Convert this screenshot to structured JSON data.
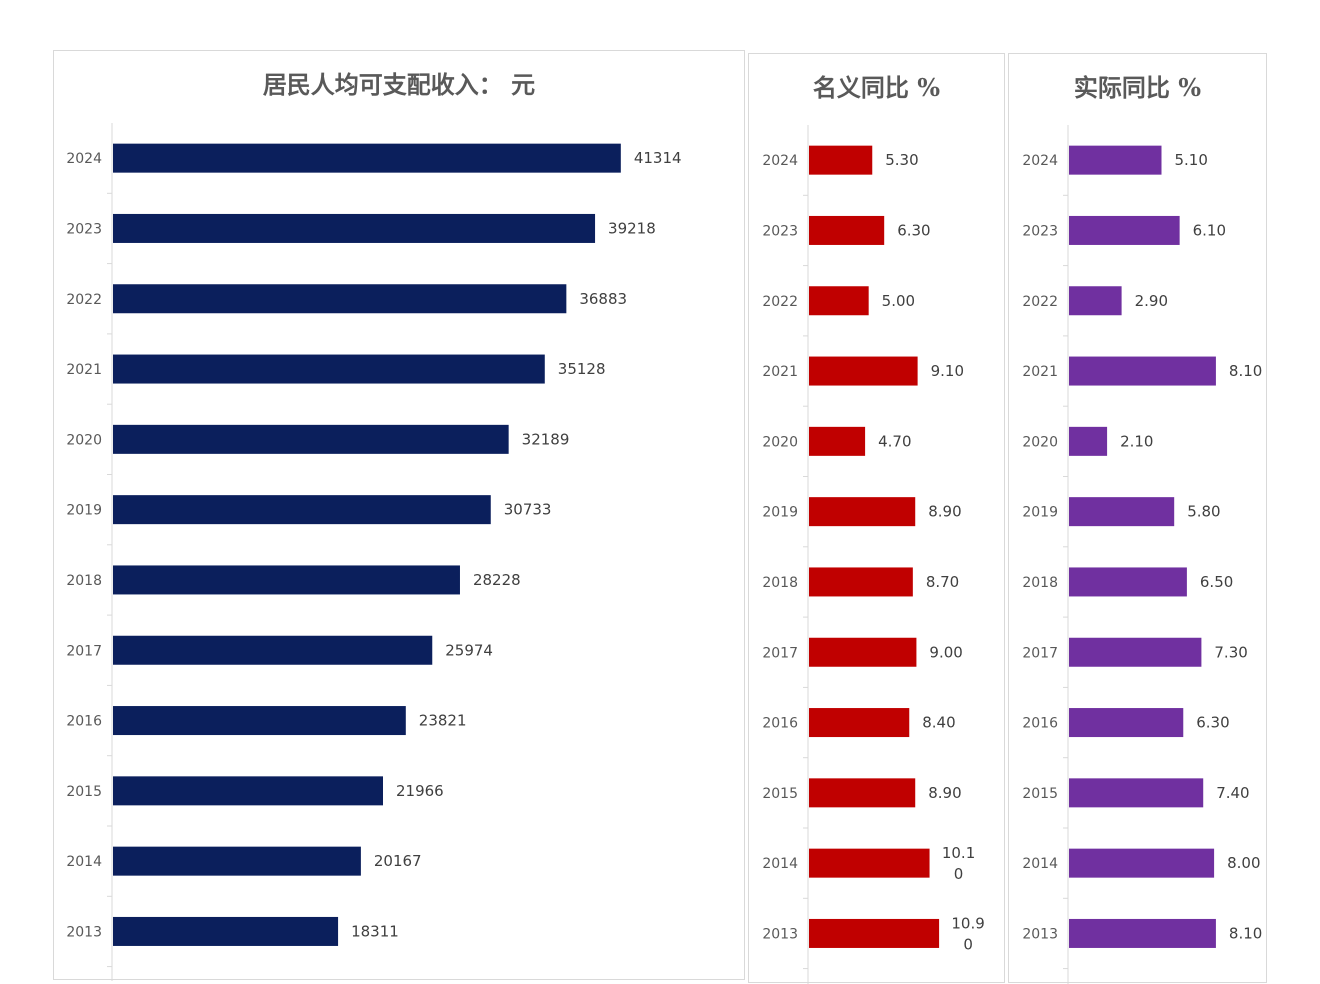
{
  "chart_data": [
    {
      "type": "bar",
      "orientation": "horizontal",
      "title": "居民人均可支配收入： 元",
      "categories": [
        "2024",
        "2023",
        "2022",
        "2021",
        "2020",
        "2019",
        "2018",
        "2017",
        "2016",
        "2015",
        "2014",
        "2013"
      ],
      "values": [
        41314,
        39218,
        36883,
        35128,
        32189,
        30733,
        28228,
        25974,
        23821,
        21966,
        20167,
        18311
      ],
      "labels": [
        "41314",
        "39218",
        "36883",
        "35128",
        "32189",
        "30733",
        "28228",
        "25974",
        "23821",
        "21966",
        "20167",
        "18311"
      ],
      "xlim": [
        0,
        48000
      ],
      "color": "#0b1f5c"
    },
    {
      "type": "bar",
      "orientation": "horizontal",
      "title": "名义同比 %",
      "categories": [
        "2024",
        "2023",
        "2022",
        "2021",
        "2020",
        "2019",
        "2018",
        "2017",
        "2016",
        "2015",
        "2014",
        "2013"
      ],
      "values": [
        5.3,
        6.3,
        5.0,
        9.1,
        4.7,
        8.9,
        8.7,
        9.0,
        8.4,
        8.9,
        10.1,
        10.9
      ],
      "labels": [
        "5.30",
        "6.30",
        "5.00",
        "9.10",
        "4.70",
        "8.90",
        "8.70",
        "9.00",
        "8.40",
        "8.90",
        "10.10",
        "10.90"
      ],
      "xlim": [
        0,
        15.5
      ],
      "color": "#c00000"
    },
    {
      "type": "bar",
      "orientation": "horizontal",
      "title": "实际同比 %",
      "categories": [
        "2024",
        "2023",
        "2022",
        "2021",
        "2020",
        "2019",
        "2018",
        "2017",
        "2016",
        "2015",
        "2014",
        "2013"
      ],
      "values": [
        5.1,
        6.1,
        2.9,
        8.1,
        2.1,
        5.8,
        6.5,
        7.3,
        6.3,
        7.4,
        8.0,
        8.1
      ],
      "labels": [
        "5.10",
        "6.10",
        "2.90",
        "8.10",
        "2.10",
        "5.80",
        "6.50",
        "7.30",
        "6.30",
        "7.40",
        "8.00",
        "8.10"
      ],
      "xlim": [
        0,
        10.2
      ],
      "color": "#7030a0"
    }
  ]
}
